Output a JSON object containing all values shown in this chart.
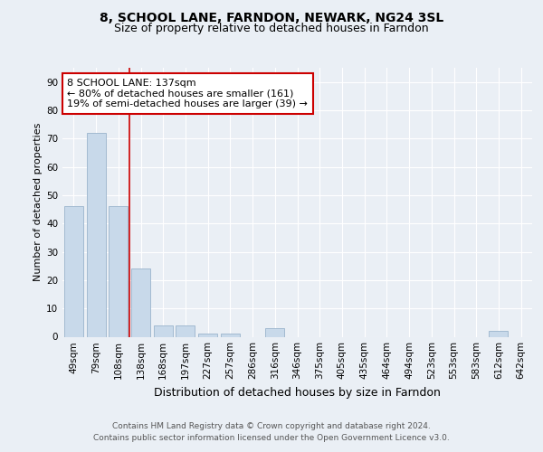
{
  "title": "8, SCHOOL LANE, FARNDON, NEWARK, NG24 3SL",
  "subtitle": "Size of property relative to detached houses in Farndon",
  "xlabel": "Distribution of detached houses by size in Farndon",
  "ylabel": "Number of detached properties",
  "categories": [
    "49sqm",
    "79sqm",
    "108sqm",
    "138sqm",
    "168sqm",
    "197sqm",
    "227sqm",
    "257sqm",
    "286sqm",
    "316sqm",
    "346sqm",
    "375sqm",
    "405sqm",
    "435sqm",
    "464sqm",
    "494sqm",
    "523sqm",
    "553sqm",
    "583sqm",
    "612sqm",
    "642sqm"
  ],
  "values": [
    46,
    72,
    46,
    24,
    4,
    4,
    1,
    1,
    0,
    3,
    0,
    0,
    0,
    0,
    0,
    0,
    0,
    0,
    0,
    2,
    0
  ],
  "bar_color": "#c8d9ea",
  "bar_edge_color": "#9ab4cc",
  "vline_x": 2.5,
  "vline_color": "#cc0000",
  "annotation_text": "8 SCHOOL LANE: 137sqm\n← 80% of detached houses are smaller (161)\n19% of semi-detached houses are larger (39) →",
  "annotation_box_edge_color": "#cc0000",
  "annotation_box_face_color": "#ffffff",
  "ylim": [
    0,
    95
  ],
  "yticks": [
    0,
    10,
    20,
    30,
    40,
    50,
    60,
    70,
    80,
    90
  ],
  "background_color": "#eaeff5",
  "plot_bg_color": "#eaeff5",
  "grid_color": "#ffffff",
  "footer_line1": "Contains HM Land Registry data © Crown copyright and database right 2024.",
  "footer_line2": "Contains public sector information licensed under the Open Government Licence v3.0.",
  "title_fontsize": 10,
  "subtitle_fontsize": 9,
  "xlabel_fontsize": 9,
  "ylabel_fontsize": 8,
  "tick_fontsize": 7.5,
  "annotation_fontsize": 8,
  "footer_fontsize": 6.5
}
